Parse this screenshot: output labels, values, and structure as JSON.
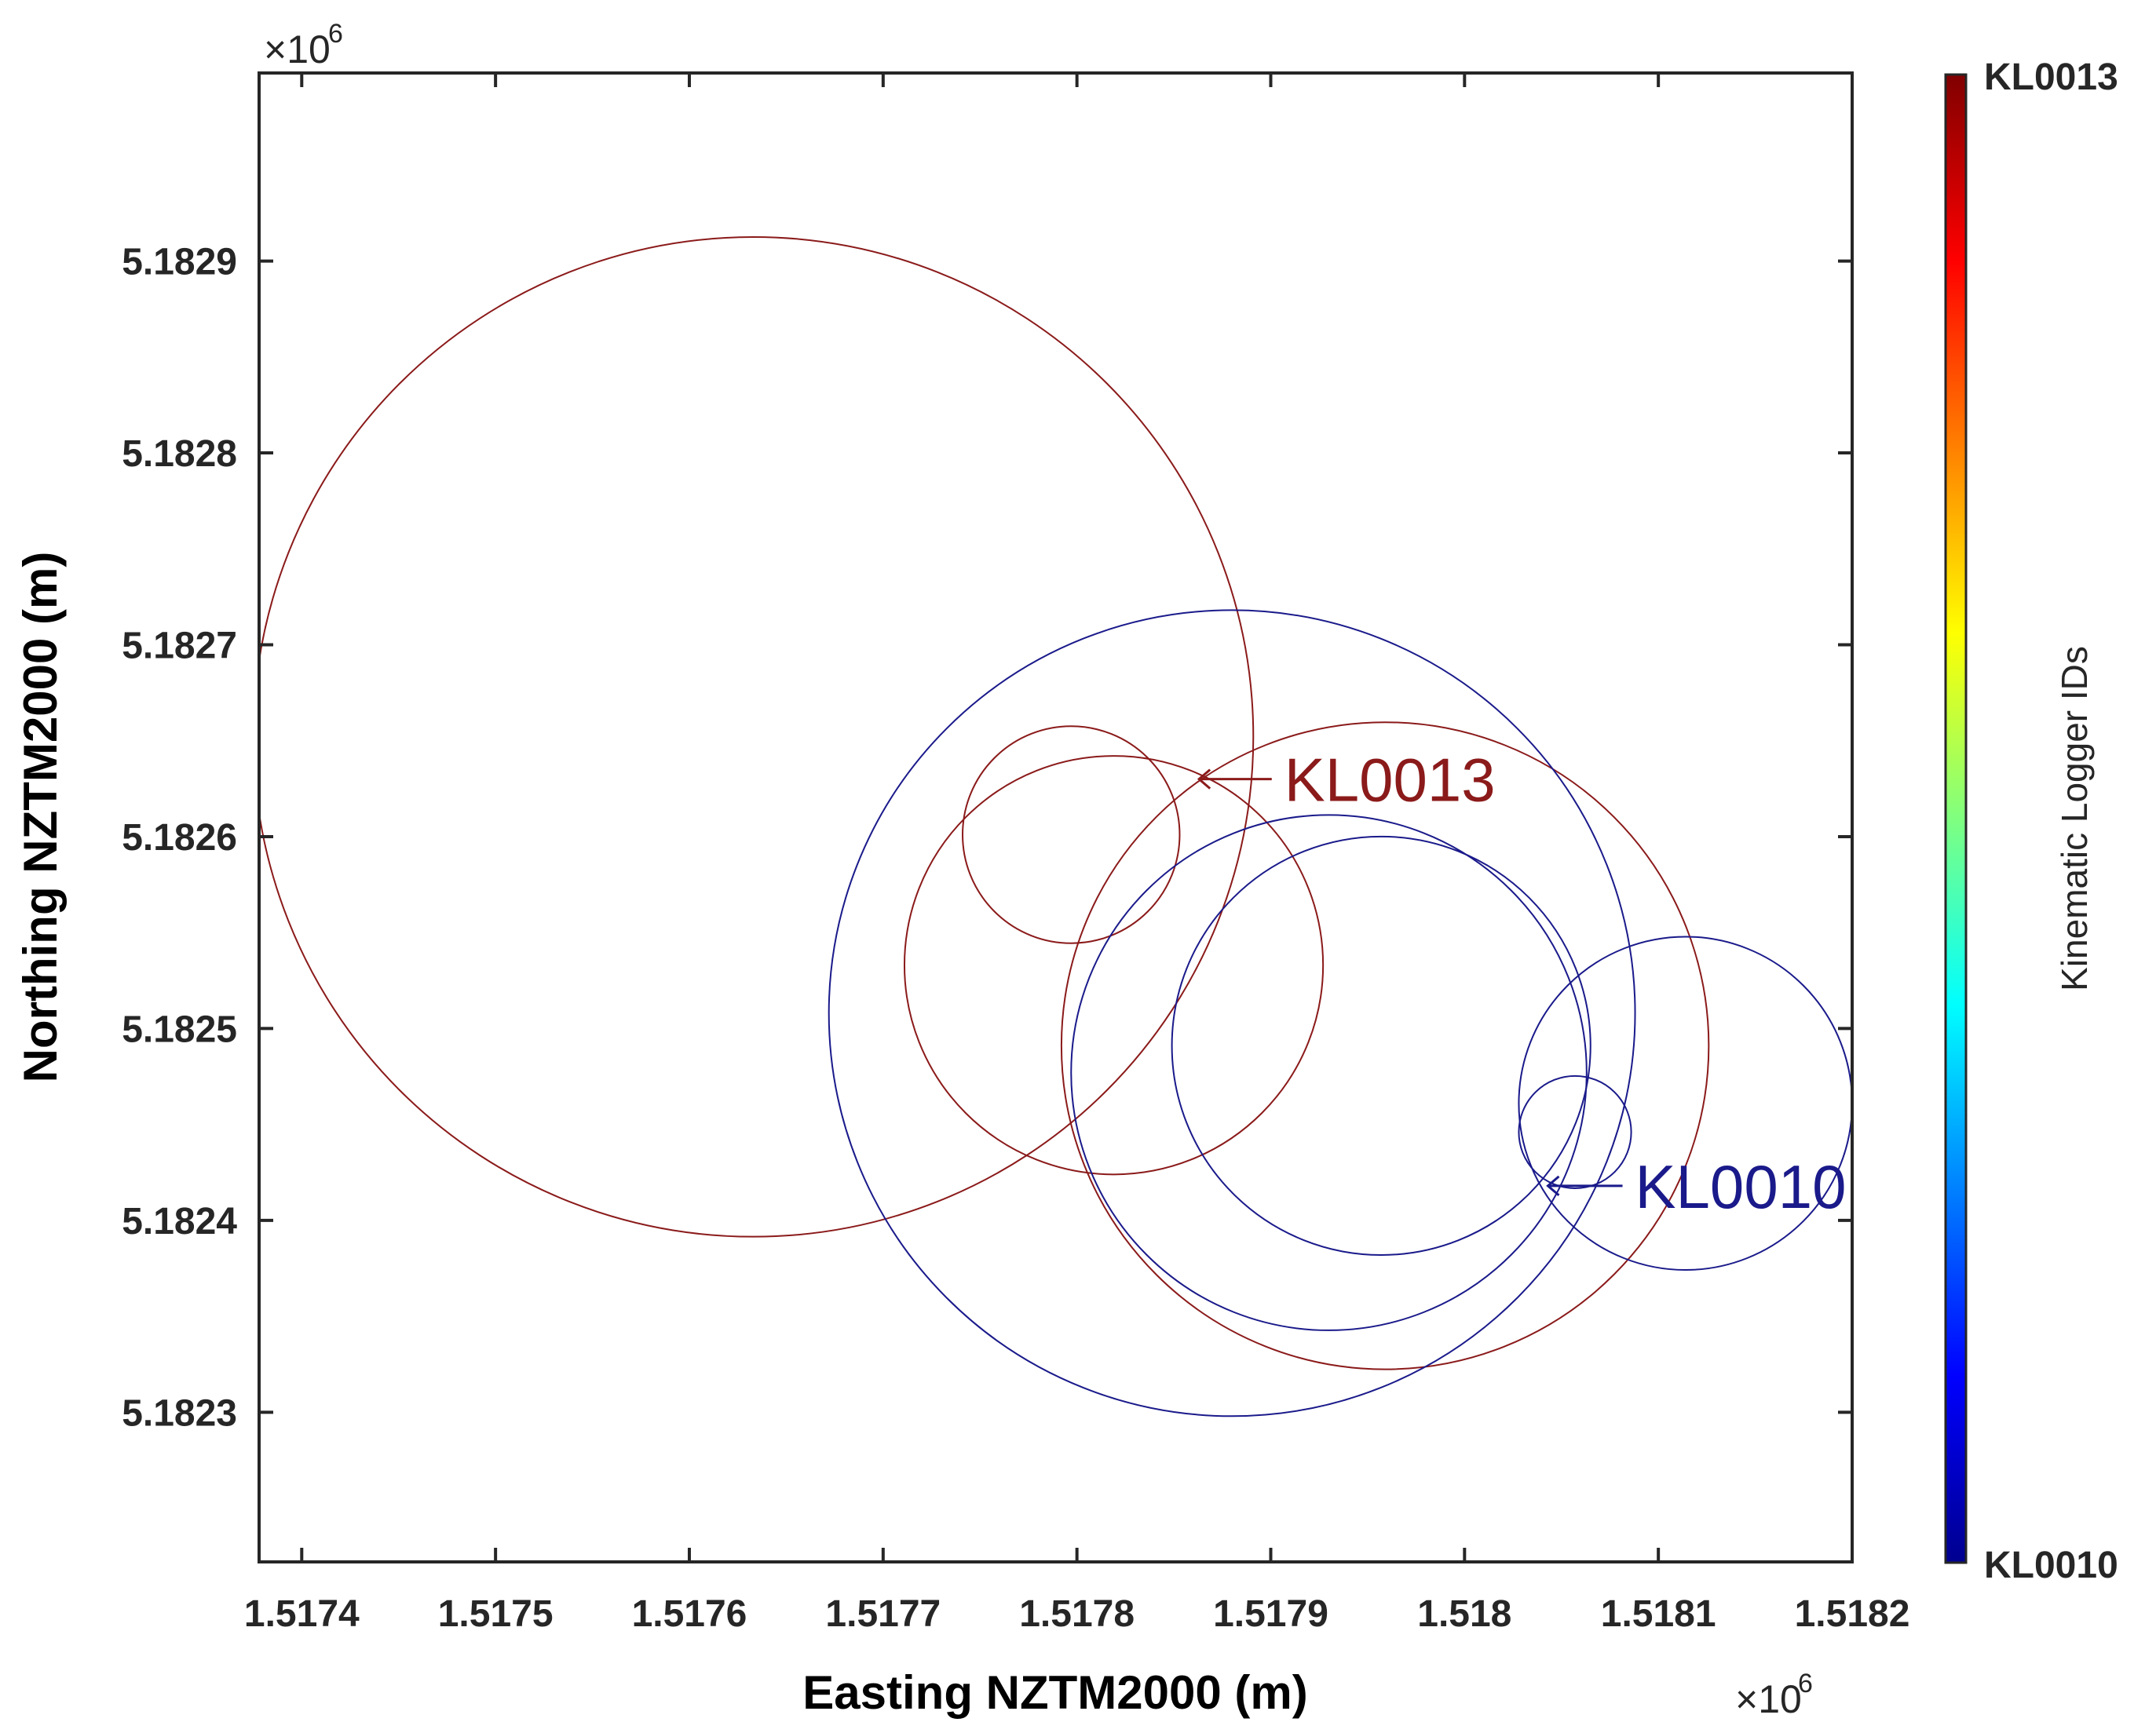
{
  "chart_data": {
    "type": "scatter",
    "title": "",
    "xlabel": "Easting NZTM2000 (m)",
    "ylabel": "Northing NZTM2000 (m)",
    "x_exponent_label": "×10",
    "y_exponent_label": "×10",
    "exponent_power": "6",
    "xlim": [
      1517378,
      1518200
    ],
    "ylim": [
      5182222,
      5182998
    ],
    "x_ticks": [
      1517400,
      1517500,
      1517600,
      1517700,
      1517800,
      1517900,
      1518000,
      1518100,
      1518200
    ],
    "x_tick_labels": [
      "1.5174",
      "1.5175",
      "1.5176",
      "1.5177",
      "1.5178",
      "1.5179",
      "1.518",
      "1.5181",
      "1.5182"
    ],
    "y_ticks": [
      5182300,
      5182400,
      5182500,
      5182600,
      5182700,
      5182800,
      5182900
    ],
    "y_tick_labels": [
      "5.1823",
      "5.1824",
      "5.1825",
      "5.1826",
      "5.1827",
      "5.1828",
      "5.1829"
    ],
    "series": [
      {
        "name": "KL0013",
        "color": "#8b1a1a",
        "circles": [
          {
            "cx": 1517633,
            "cy": 5182652,
            "r": 258
          },
          {
            "cx": 1517797,
            "cy": 5182601,
            "r": 56
          },
          {
            "cx": 1517819,
            "cy": 5182533,
            "r": 108
          },
          {
            "cx": 1517959,
            "cy": 5182491,
            "r": 167
          }
        ]
      },
      {
        "name": "KL0010",
        "color": "#1a1a8b",
        "circles": [
          {
            "cx": 1517880,
            "cy": 5182508,
            "r": 208
          },
          {
            "cx": 1517930,
            "cy": 5182477,
            "r": 133
          },
          {
            "cx": 1517957,
            "cy": 5182491,
            "r": 108
          },
          {
            "cx": 1518057,
            "cy": 5182446,
            "r": 29
          },
          {
            "cx": 1518114,
            "cy": 5182461,
            "r": 86
          }
        ]
      }
    ],
    "annotations": [
      {
        "text": "KL0013",
        "series": 0,
        "arrow_x": 1517863,
        "arrow_y": 5182630,
        "text_x": 1517907,
        "text_y": 5182630,
        "color": "#8b1a1a"
      },
      {
        "text": "KL0010",
        "series": 1,
        "arrow_x": 1518043,
        "arrow_y": 5182418,
        "text_x": 1518088,
        "text_y": 5182418,
        "color": "#1a1a8b"
      }
    ],
    "colorbar": {
      "title": "Kinematic Logger IDs",
      "top_label": "KL0013",
      "bottom_label": "KL0010",
      "colormap": "jet"
    }
  }
}
